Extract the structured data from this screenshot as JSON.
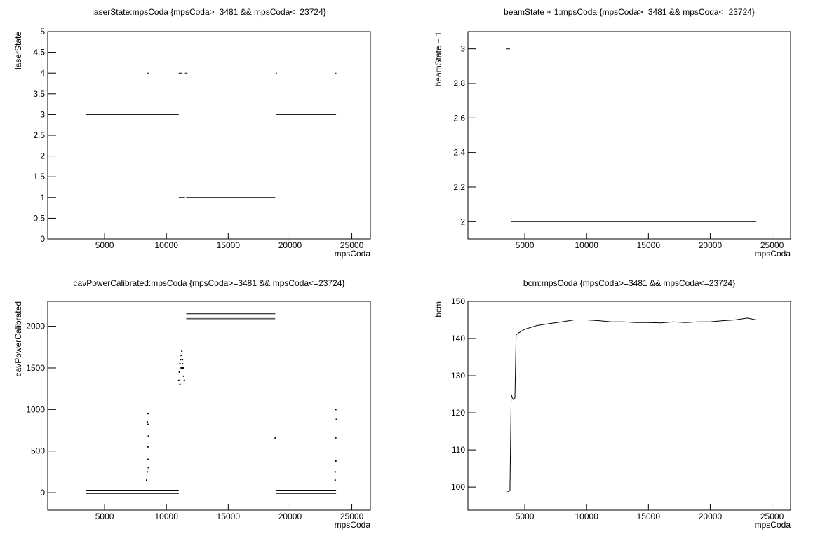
{
  "chart_data": [
    {
      "type": "line",
      "title": "laserState:mpsCoda {mpsCoda>=3481 && mpsCoda<=23724}",
      "xlabel": "mpsCoda",
      "ylabel": "laserState",
      "xlim": [
        400,
        26500
      ],
      "ylim": [
        0,
        5
      ],
      "xticks": [
        5000,
        10000,
        15000,
        20000,
        25000
      ],
      "yticks": [
        0,
        0.5,
        1,
        1.5,
        2,
        2.5,
        3,
        3.5,
        4,
        4.5,
        5
      ],
      "series": [
        {
          "color": "#000000",
          "x": [
            3481,
            11000,
            null,
            11000,
            11500,
            null,
            11600,
            18800,
            null,
            18900,
            23724,
            null,
            8400,
            8600,
            null,
            11000,
            11300,
            null,
            11500,
            11700,
            null,
            18850,
            18950,
            null,
            23650,
            23750
          ],
          "values": [
            3,
            3,
            null,
            1,
            1,
            null,
            1,
            1,
            null,
            3,
            3,
            null,
            4,
            4,
            null,
            4,
            4,
            null,
            4,
            4,
            null,
            4,
            4,
            null,
            4,
            4
          ]
        }
      ]
    },
    {
      "type": "line",
      "title": "beamState + 1:mpsCoda {mpsCoda>=3481 && mpsCoda<=23724}",
      "xlabel": "mpsCoda",
      "ylabel": "beamState + 1",
      "xlim": [
        400,
        26500
      ],
      "ylim": [
        1.9,
        3.1
      ],
      "xticks": [
        5000,
        10000,
        15000,
        20000,
        25000
      ],
      "yticks": [
        2,
        2.2,
        2.4,
        2.6,
        2.8,
        3
      ],
      "series": [
        {
          "color": "#000000",
          "x": [
            3481,
            3800,
            null,
            3900,
            23724
          ],
          "values": [
            3,
            3,
            null,
            2,
            2
          ]
        }
      ]
    },
    {
      "type": "line",
      "title": "cavPowerCalibrated:mpsCoda {mpsCoda>=3481 && mpsCoda<=23724}",
      "xlabel": "mpsCoda",
      "ylabel": "cavPowerCalibrated",
      "xlim": [
        400,
        26500
      ],
      "ylim": [
        -210,
        2300
      ],
      "xticks": [
        5000,
        10000,
        15000,
        20000,
        25000
      ],
      "yticks": [
        0,
        500,
        1000,
        1500,
        2000
      ],
      "series": [
        {
          "color": "#000000",
          "x": [
            3481,
            11000,
            null,
            3481,
            11000,
            null,
            11600,
            18800,
            null,
            11600,
            18800,
            null,
            11600,
            18800,
            null,
            18900,
            23724,
            null,
            18900,
            23724
          ],
          "values": [
            30,
            30,
            null,
            -10,
            -10,
            null,
            2150,
            2150,
            null,
            2110,
            2110,
            null,
            2090,
            2090,
            null,
            30,
            30,
            null,
            -10,
            -10
          ]
        },
        {
          "color": "#000000",
          "dots": true,
          "x": [
            8400,
            8450,
            8500,
            8500,
            8550,
            8500,
            8450,
            8500,
            8550,
            11000,
            11050,
            11100,
            11150,
            11200,
            11250,
            11300,
            11350,
            11400,
            11100,
            11200,
            11300,
            11450,
            18800,
            23650,
            23700,
            23700,
            23750,
            23700,
            23650
          ],
          "values": [
            150,
            250,
            400,
            550,
            680,
            820,
            850,
            950,
            300,
            1350,
            1450,
            1550,
            1600,
            1650,
            1700,
            1550,
            1500,
            1400,
            1300,
            1500,
            1600,
            1350,
            660,
            150,
            380,
            660,
            880,
            1000,
            250
          ]
        }
      ]
    },
    {
      "type": "line",
      "title": "bcm:mpsCoda {mpsCoda>=3481 && mpsCoda<=23724}",
      "xlabel": "mpsCoda",
      "ylabel": "bcm",
      "xlim": [
        400,
        26500
      ],
      "ylim": [
        93.8,
        150
      ],
      "xticks": [
        5000,
        10000,
        15000,
        20000,
        25000
      ],
      "yticks": [
        100,
        110,
        120,
        130,
        140,
        150
      ],
      "series": [
        {
          "color": "#000000",
          "x": [
            3481,
            3700,
            3800,
            3900,
            4000,
            4100,
            4200,
            4300,
            4500,
            5000,
            5500,
            6000,
            7000,
            8000,
            9000,
            10000,
            11000,
            12000,
            13000,
            14000,
            15000,
            16000,
            17000,
            18000,
            19000,
            20000,
            21000,
            22000,
            23000,
            23724
          ],
          "values": [
            99,
            98.8,
            99,
            125,
            124,
            123.5,
            124,
            141,
            141.5,
            142.5,
            143,
            143.5,
            144,
            144.5,
            145,
            145,
            144.8,
            144.5,
            144.5,
            144.3,
            144.3,
            144.2,
            144.5,
            144.3,
            144.5,
            144.5,
            144.8,
            145,
            145.5,
            145
          ]
        }
      ]
    }
  ]
}
